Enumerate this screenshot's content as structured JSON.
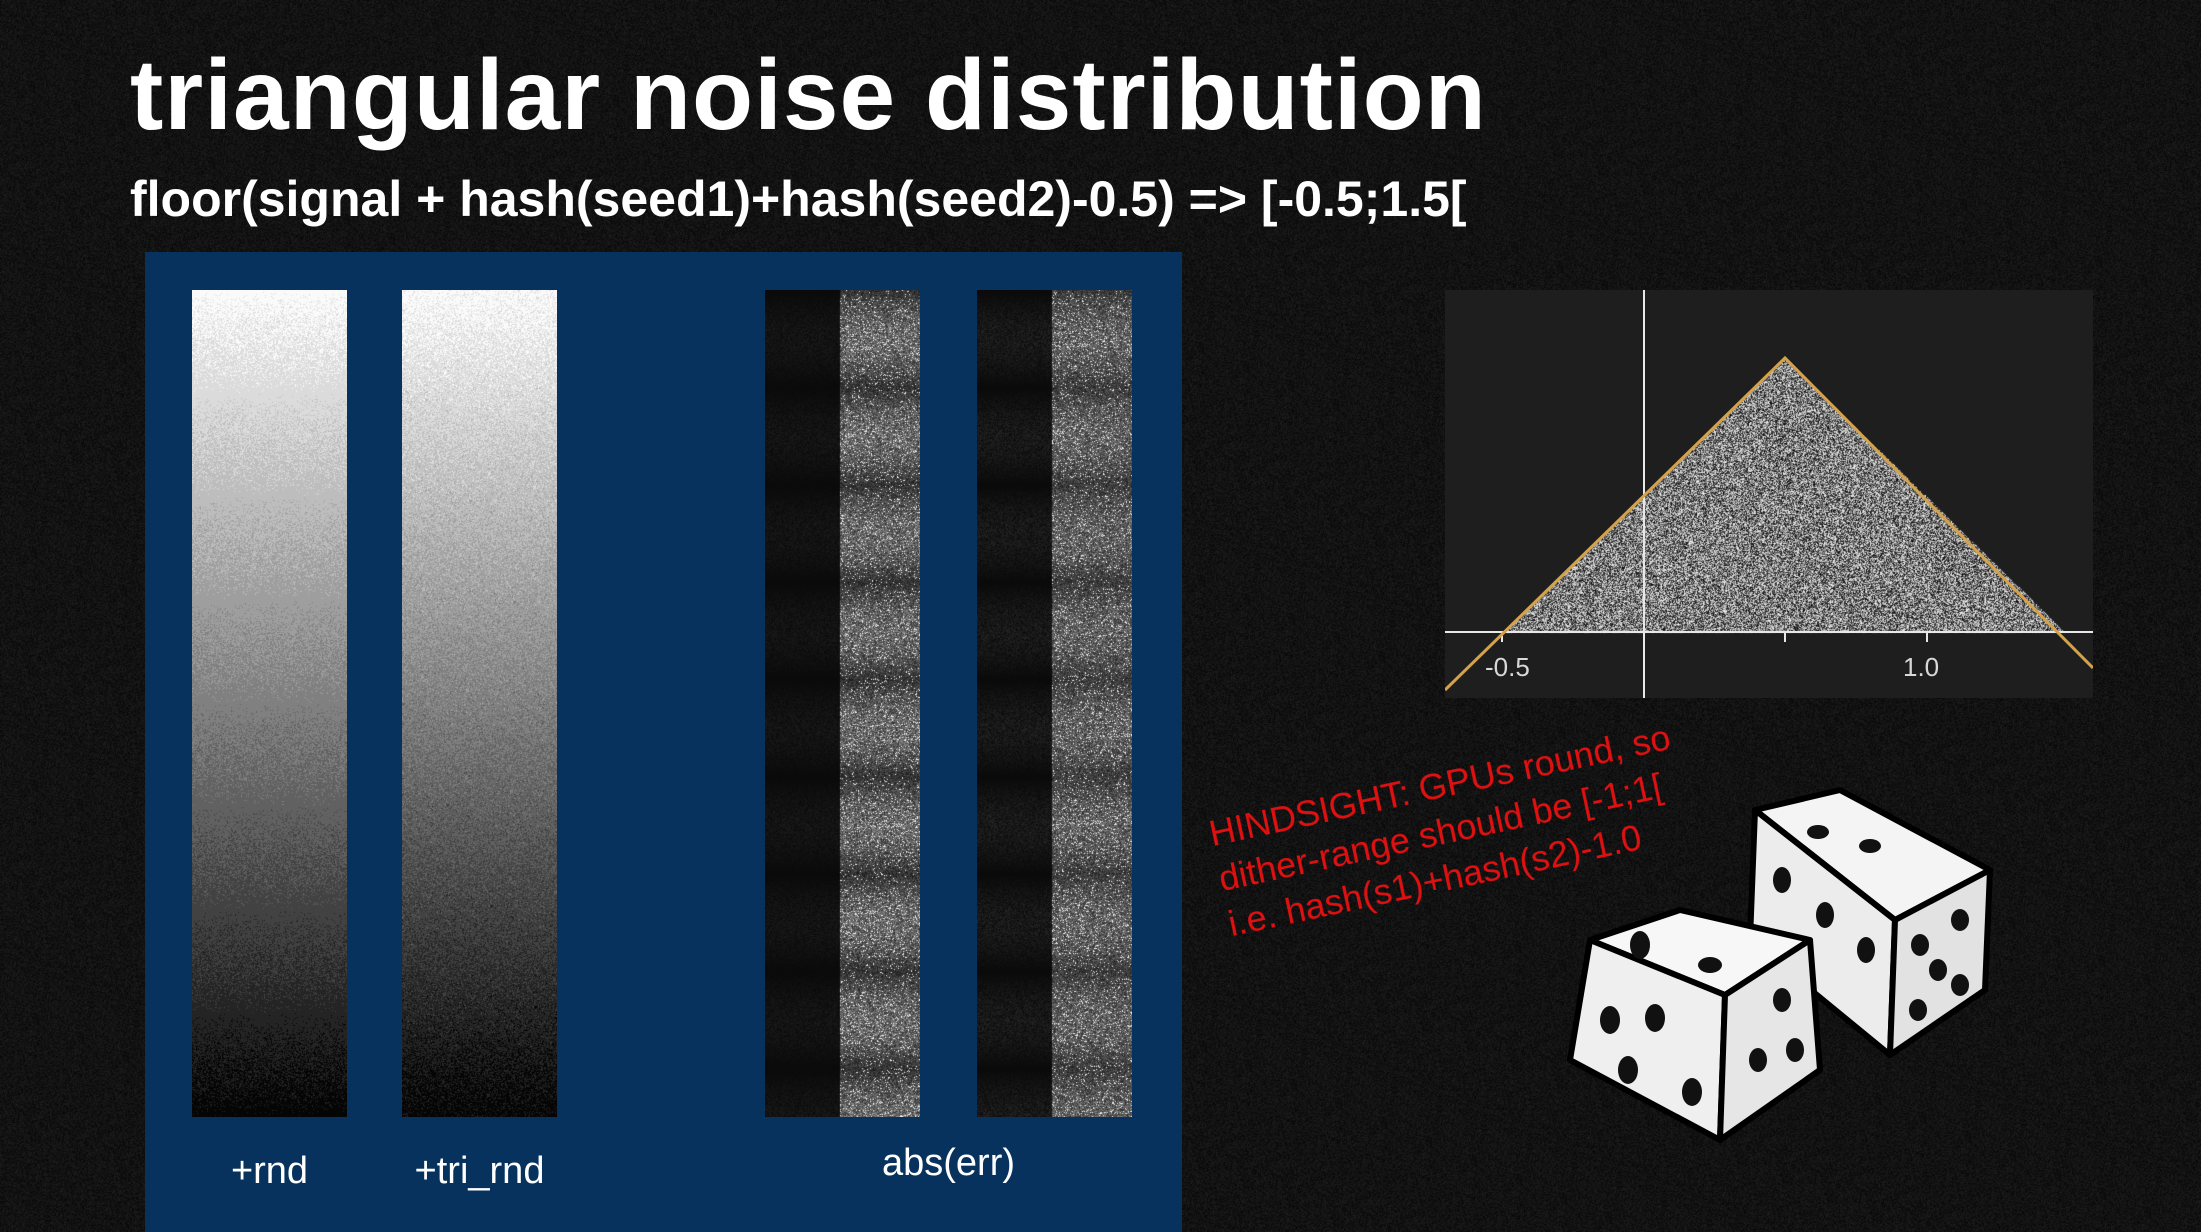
{
  "slide": {
    "title": "triangular noise distribution",
    "subtitle": "floor(signal + hash(seed1)+hash(seed2)-0.5) => [-0.5;1.5["
  },
  "panel": {
    "labels": {
      "rnd": "+rnd",
      "tri_rnd": "+tri_rnd",
      "abs_err": "abs(err)"
    }
  },
  "graph": {
    "tick_labels": [
      "-0.5",
      "1.0"
    ]
  },
  "note": {
    "lines": [
      "HINDSIGHT: GPUs round, so",
      "dither-range should be [-1;1[",
      "i.e. hash(s1)+hash(s2)-1.0"
    ]
  },
  "colors": {
    "panel_bg": "#06325d",
    "note": "#e01010",
    "graph_line": "#d4a24a"
  },
  "icons": [
    "dice-icon"
  ]
}
